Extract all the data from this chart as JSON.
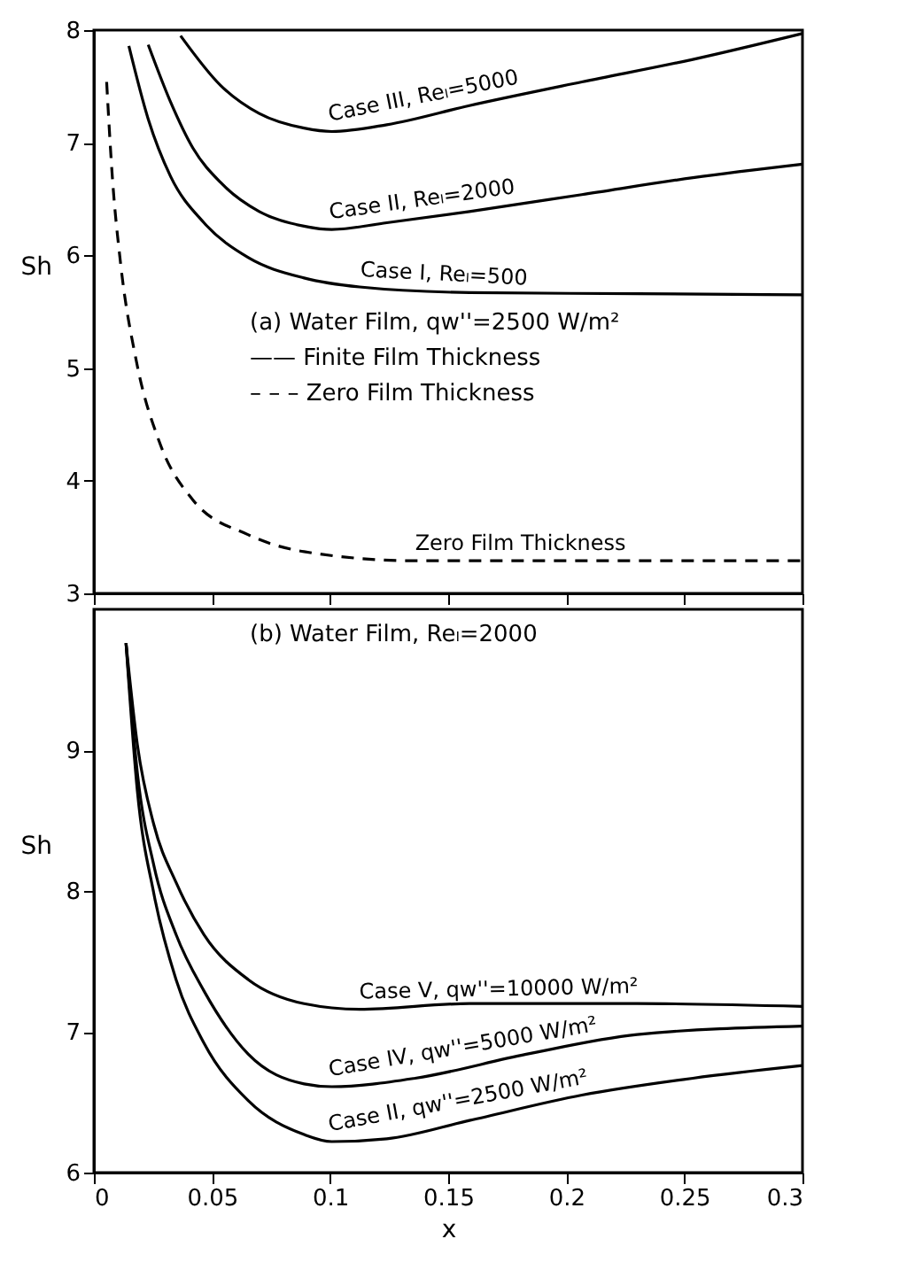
{
  "chart_data": [
    {
      "type": "line",
      "ylabel": "Sh",
      "xlim": [
        0,
        0.3
      ],
      "xticks": [
        0,
        0.05,
        0.1,
        0.15,
        0.2,
        0.25,
        0.3
      ],
      "ylim": [
        3,
        8
      ],
      "yticks": [
        3,
        4,
        5,
        6,
        7,
        8
      ],
      "tick_labels": "y",
      "grid": false,
      "series": [
        {
          "name": "Case III, Reₗ=5000",
          "color": "#000000",
          "line_style": "solid",
          "x": [
            0.0367,
            0.0536,
            0.07,
            0.089,
            0.1007,
            0.124,
            0.159,
            0.2066,
            0.2536,
            0.3
          ],
          "values": [
            7.95,
            7.51,
            7.26,
            7.13,
            7.1,
            7.16,
            7.33,
            7.54,
            7.74,
            7.97
          ]
        },
        {
          "name": "Case II, Reₗ=2000",
          "color": "#000000",
          "line_style": "solid",
          "x": [
            0.023,
            0.0325,
            0.042,
            0.054,
            0.07,
            0.089,
            0.1007,
            0.124,
            0.159,
            0.2066,
            0.2536,
            0.3
          ],
          "values": [
            7.87,
            7.36,
            6.95,
            6.64,
            6.39,
            6.26,
            6.23,
            6.29,
            6.39,
            6.54,
            6.69,
            6.81
          ]
        },
        {
          "name": "Case I, Reₗ=500",
          "color": "#000000",
          "line_style": "solid",
          "x": [
            0.0148,
            0.023,
            0.0325,
            0.0466,
            0.0654,
            0.089,
            0.1125,
            0.159,
            0.23,
            0.3
          ],
          "values": [
            7.86,
            7.21,
            6.7,
            6.29,
            5.98,
            5.8,
            5.72,
            5.67,
            5.66,
            5.65
          ]
        },
        {
          "name": "Zero Film Thickness",
          "color": "#000000",
          "line_style": "dashed",
          "x": [
            0.0054,
            0.0078,
            0.0113,
            0.018,
            0.0278,
            0.0419,
            0.0654,
            0.089,
            0.136,
            0.183,
            0.23,
            0.3
          ],
          "values": [
            7.54,
            6.7,
            5.93,
            5.06,
            4.34,
            3.83,
            3.52,
            3.37,
            3.29,
            3.29,
            3.29,
            3.29
          ]
        }
      ],
      "annotations": [
        "(a) Water Film, qw''=2500 W/m²",
        "—— Finite Film Thickness",
        "– – – Zero Film Thickness"
      ]
    },
    {
      "type": "line",
      "title": "(b) Water Film, Reₗ=2000",
      "xlabel": "x",
      "ylabel": "Sh",
      "xlim": [
        0,
        0.3
      ],
      "xticks": [
        0,
        0.05,
        0.1,
        0.15,
        0.2,
        0.25,
        0.3
      ],
      "ylim": [
        6,
        10
      ],
      "yticks": [
        6,
        7,
        8,
        9
      ],
      "grid": false,
      "series": [
        {
          "name": "Case V, qw''=10000 W/m²",
          "color": "#000000",
          "line_style": "solid",
          "x": [
            0.0136,
            0.0184,
            0.0254,
            0.0348,
            0.0466,
            0.0654,
            0.089,
            0.1125,
            0.159,
            0.23,
            0.3
          ],
          "values": [
            9.76,
            9.04,
            8.47,
            8.06,
            7.69,
            7.37,
            7.2,
            7.16,
            7.2,
            7.2,
            7.18
          ]
        },
        {
          "name": "Case IV, qw''=5000 W/m²",
          "color": "#000000",
          "line_style": "solid",
          "x": [
            0.0136,
            0.0184,
            0.0254,
            0.0348,
            0.0466,
            0.0654,
            0.089,
            0.1007,
            0.136,
            0.183,
            0.23,
            0.3
          ],
          "values": [
            9.76,
            8.84,
            8.18,
            7.69,
            7.29,
            6.84,
            6.63,
            6.61,
            6.67,
            6.84,
            6.98,
            7.04
          ]
        },
        {
          "name": "Case II, qw''=2500 W/m²",
          "color": "#000000",
          "line_style": "solid",
          "x": [
            0.0136,
            0.0184,
            0.0254,
            0.0348,
            0.0466,
            0.0654,
            0.089,
            0.1007,
            0.124,
            0.159,
            0.2066,
            0.2536,
            0.3
          ],
          "values": [
            9.76,
            8.71,
            7.98,
            7.37,
            6.92,
            6.51,
            6.27,
            6.22,
            6.24,
            6.37,
            6.55,
            6.67,
            6.76
          ]
        }
      ]
    }
  ]
}
